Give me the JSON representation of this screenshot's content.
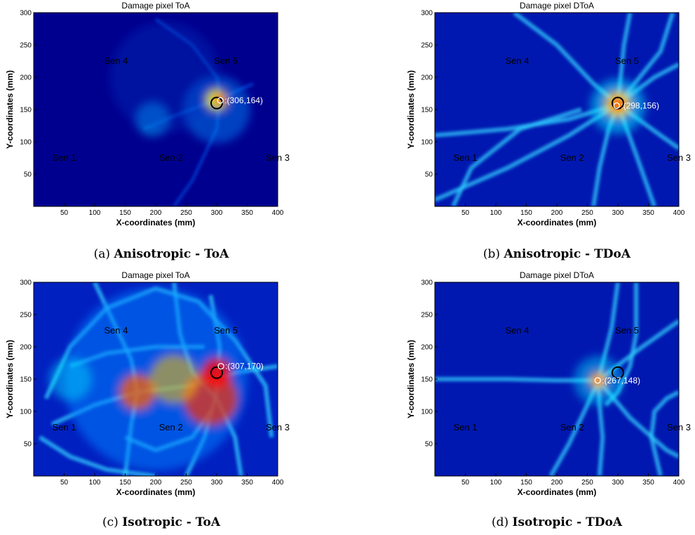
{
  "colors": {
    "background": "#00007f",
    "low": "#0000c8",
    "mid": "#00ffff",
    "high": "#ff0000",
    "peak": "#7f0000",
    "true_marker": "#000000",
    "estimate_marker": "#ffffff"
  },
  "chart_data": [
    {
      "type": "heatmap",
      "id": "a",
      "title": "Damage pixel ToA",
      "xlabel": "X-coordinates (mm)",
      "ylabel": "Y-coordinates (mm)",
      "xlim": [
        0,
        400
      ],
      "ylim": [
        0,
        300
      ],
      "xticks": [
        50,
        100,
        150,
        200,
        250,
        300,
        350,
        400
      ],
      "yticks": [
        50,
        100,
        150,
        200,
        250,
        300
      ],
      "sensors": [
        {
          "label": "Sen 1",
          "x": 50,
          "y": 75
        },
        {
          "label": "Sen 2",
          "x": 225,
          "y": 75
        },
        {
          "label": "Sen 3",
          "x": 400,
          "y": 75
        },
        {
          "label": "Sen 4",
          "x": 135,
          "y": 225
        },
        {
          "label": "Sen 5",
          "x": 315,
          "y": 225
        }
      ],
      "true_damage": {
        "x": 300,
        "y": 160
      },
      "estimate": {
        "x": 306,
        "y": 164,
        "label": ":(306,164)"
      },
      "caption_id": "(a)",
      "caption_text": "Anisotropic - ToA"
    },
    {
      "type": "heatmap",
      "id": "b",
      "title": "Damage pixel DToA",
      "xlabel": "X-coordinates (mm)",
      "ylabel": "Y-coordinates (mm)",
      "xlim": [
        0,
        400
      ],
      "ylim": [
        0,
        300
      ],
      "xticks": [
        50,
        100,
        150,
        200,
        250,
        300,
        350,
        400
      ],
      "yticks": [
        50,
        100,
        150,
        200,
        250,
        300
      ],
      "sensors": [
        {
          "label": "Sen 1",
          "x": 50,
          "y": 75
        },
        {
          "label": "Sen 2",
          "x": 225,
          "y": 75
        },
        {
          "label": "Sen 3",
          "x": 400,
          "y": 75
        },
        {
          "label": "Sen 4",
          "x": 135,
          "y": 225
        },
        {
          "label": "Sen 5",
          "x": 315,
          "y": 225
        }
      ],
      "true_damage": {
        "x": 300,
        "y": 160
      },
      "estimate": {
        "x": 298,
        "y": 156,
        "label": ":(298,156)"
      },
      "caption_id": "(b)",
      "caption_text": "Anisotropic - TDoA"
    },
    {
      "type": "heatmap",
      "id": "c",
      "title": "Damage pixel ToA",
      "xlabel": "X-coordinates (mm)",
      "ylabel": "Y-coordinates (mm)",
      "xlim": [
        0,
        400
      ],
      "ylim": [
        0,
        300
      ],
      "xticks": [
        50,
        100,
        150,
        200,
        250,
        300,
        350,
        400
      ],
      "yticks": [
        50,
        100,
        150,
        200,
        250,
        300
      ],
      "sensors": [
        {
          "label": "Sen 1",
          "x": 50,
          "y": 75
        },
        {
          "label": "Sen 2",
          "x": 225,
          "y": 75
        },
        {
          "label": "Sen 3",
          "x": 400,
          "y": 75
        },
        {
          "label": "Sen 4",
          "x": 135,
          "y": 225
        },
        {
          "label": "Sen 5",
          "x": 315,
          "y": 225
        }
      ],
      "true_damage": {
        "x": 300,
        "y": 160
      },
      "estimate": {
        "x": 307,
        "y": 170,
        "label": ":(307,170)"
      },
      "caption_id": "(c)",
      "caption_text": "Isotropic - ToA"
    },
    {
      "type": "heatmap",
      "id": "d",
      "title": "Damage pixel DToA",
      "xlabel": "X-coordinates (mm)",
      "ylabel": "Y-coordinates (mm)",
      "xlim": [
        0,
        400
      ],
      "ylim": [
        0,
        300
      ],
      "xticks": [
        50,
        100,
        150,
        200,
        250,
        300,
        350,
        400
      ],
      "yticks": [
        50,
        100,
        150,
        200,
        250,
        300
      ],
      "sensors": [
        {
          "label": "Sen 1",
          "x": 50,
          "y": 75
        },
        {
          "label": "Sen 2",
          "x": 225,
          "y": 75
        },
        {
          "label": "Sen 3",
          "x": 400,
          "y": 75
        },
        {
          "label": "Sen 4",
          "x": 135,
          "y": 225
        },
        {
          "label": "Sen 5",
          "x": 315,
          "y": 225
        }
      ],
      "true_damage": {
        "x": 300,
        "y": 160
      },
      "estimate": {
        "x": 267,
        "y": 148,
        "label": ":(267,148)"
      },
      "caption_id": "(d)",
      "caption_text": "Isotropic - TDoA"
    }
  ]
}
